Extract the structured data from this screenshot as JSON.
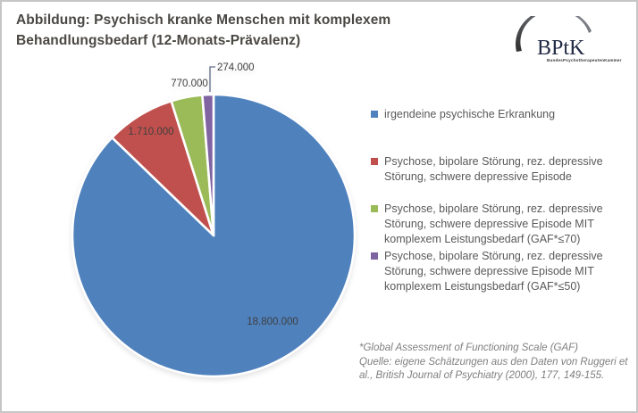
{
  "header": {
    "title": "Abbildung: Psychisch kranke Menschen mit komplexem\nBehandlungsbedarf (12-Monats-Prävalenz)",
    "logo": {
      "acronym": "BPtK",
      "subtitle": "BundesPsychotherapeutenKammer",
      "arc_color_dark": "#3a3a3a",
      "arc_color_light": "#8a8f96",
      "text_color": "#232c47"
    }
  },
  "chart_data": {
    "type": "pie",
    "title": "Psychisch kranke Menschen mit komplexem Behandlungsbedarf (12-Monats-Prävalenz)",
    "start_angle_deg": 0,
    "direction": "clockwise",
    "legend_position": "right",
    "slices": [
      {
        "label": "irgendeine psychische Erkrankung",
        "value": 18800000,
        "value_label": "18.800.000",
        "color": "#4F81BD"
      },
      {
        "label": "Psychose, bipolare Störung, rez. depressive\nStörung, schwere depressive Episode",
        "value": 1710000,
        "value_label": "1.710.000",
        "color": "#C0504D"
      },
      {
        "label": "Psychose, bipolare Störung, rez. depressive\nStörung, schwere depressive Episode MIT\nkomplexem Leistungsbedarf (GAF*≤70)",
        "value": 770000,
        "value_label": "770.000",
        "color": "#9BBB59"
      },
      {
        "label": "Psychose, bipolare Störung, rez. depressive\nStörung, schwere depressive Episode MIT\nkomplexem Leistungsbedarf (GAF*≤50)",
        "value": 274000,
        "value_label": "274.000",
        "color": "#8064A2"
      }
    ]
  },
  "footnote": {
    "text": "*Global Assessment of Functioning Scale (GAF)\nQuelle: eigene Schätzungen aus den Daten von Ruggeri et\nal., British Journal of Psychiatry (2000), 177, 149-155."
  }
}
